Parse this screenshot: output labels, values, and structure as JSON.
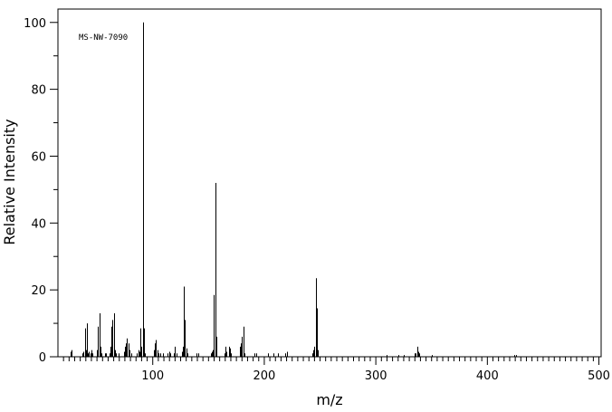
{
  "chart_data": {
    "type": "bar",
    "sample_id": "MS-NW-7090",
    "xlabel": "m/z",
    "ylabel": "Relative Intensity",
    "xlim": [
      15,
      502
    ],
    "ylim": [
      0,
      104
    ],
    "x_ticks": [
      100,
      200,
      300,
      400,
      500
    ],
    "y_ticks": [
      0,
      20,
      40,
      60,
      80,
      100
    ],
    "x_minor_step": 5,
    "y_minor_step": 10,
    "grid": false,
    "peaks": [
      {
        "x": 26,
        "y": 1.5
      },
      {
        "x": 27,
        "y": 2
      },
      {
        "x": 37,
        "y": 1
      },
      {
        "x": 38,
        "y": 1.5
      },
      {
        "x": 39,
        "y": 8.5
      },
      {
        "x": 40,
        "y": 2
      },
      {
        "x": 41,
        "y": 10
      },
      {
        "x": 42,
        "y": 1
      },
      {
        "x": 43,
        "y": 1.5
      },
      {
        "x": 44,
        "y": 1
      },
      {
        "x": 45,
        "y": 2
      },
      {
        "x": 46,
        "y": 1
      },
      {
        "x": 50,
        "y": 2
      },
      {
        "x": 51,
        "y": 9
      },
      {
        "x": 52,
        "y": 13
      },
      {
        "x": 53,
        "y": 3
      },
      {
        "x": 54,
        "y": 1
      },
      {
        "x": 57,
        "y": 1
      },
      {
        "x": 58,
        "y": 1
      },
      {
        "x": 61,
        "y": 1
      },
      {
        "x": 62,
        "y": 3
      },
      {
        "x": 63,
        "y": 9
      },
      {
        "x": 64,
        "y": 11
      },
      {
        "x": 65,
        "y": 13
      },
      {
        "x": 66,
        "y": 2
      },
      {
        "x": 67,
        "y": 1
      },
      {
        "x": 69,
        "y": 1
      },
      {
        "x": 74,
        "y": 1.5
      },
      {
        "x": 75,
        "y": 3
      },
      {
        "x": 76,
        "y": 4
      },
      {
        "x": 77,
        "y": 5.5
      },
      {
        "x": 78,
        "y": 4
      },
      {
        "x": 79,
        "y": 2
      },
      {
        "x": 81,
        "y": 1
      },
      {
        "x": 86,
        "y": 1
      },
      {
        "x": 87,
        "y": 2
      },
      {
        "x": 88,
        "y": 1.5
      },
      {
        "x": 89,
        "y": 8.5
      },
      {
        "x": 90,
        "y": 3
      },
      {
        "x": 91,
        "y": 100
      },
      {
        "x": 92,
        "y": 8.5
      },
      {
        "x": 93,
        "y": 1
      },
      {
        "x": 101,
        "y": 2
      },
      {
        "x": 102,
        "y": 4
      },
      {
        "x": 103,
        "y": 5
      },
      {
        "x": 104,
        "y": 2
      },
      {
        "x": 105,
        "y": 1
      },
      {
        "x": 107,
        "y": 1
      },
      {
        "x": 109,
        "y": 1
      },
      {
        "x": 113,
        "y": 1
      },
      {
        "x": 115,
        "y": 1.5
      },
      {
        "x": 116,
        "y": 1
      },
      {
        "x": 119,
        "y": 1
      },
      {
        "x": 120,
        "y": 3
      },
      {
        "x": 121,
        "y": 1
      },
      {
        "x": 126,
        "y": 1.5
      },
      {
        "x": 127,
        "y": 3
      },
      {
        "x": 128,
        "y": 21
      },
      {
        "x": 129,
        "y": 11
      },
      {
        "x": 130,
        "y": 2.5
      },
      {
        "x": 131,
        "y": 1
      },
      {
        "x": 139,
        "y": 1
      },
      {
        "x": 141,
        "y": 1
      },
      {
        "x": 152,
        "y": 1
      },
      {
        "x": 153,
        "y": 1.5
      },
      {
        "x": 154,
        "y": 2
      },
      {
        "x": 155,
        "y": 18.5
      },
      {
        "x": 156,
        "y": 52
      },
      {
        "x": 157,
        "y": 6
      },
      {
        "x": 164,
        "y": 1
      },
      {
        "x": 165,
        "y": 3
      },
      {
        "x": 166,
        "y": 1.5
      },
      {
        "x": 168,
        "y": 3
      },
      {
        "x": 169,
        "y": 2.5
      },
      {
        "x": 170,
        "y": 1
      },
      {
        "x": 178,
        "y": 3
      },
      {
        "x": 179,
        "y": 4
      },
      {
        "x": 180,
        "y": 6
      },
      {
        "x": 181,
        "y": 9
      },
      {
        "x": 182,
        "y": 1
      },
      {
        "x": 191,
        "y": 1
      },
      {
        "x": 193,
        "y": 1
      },
      {
        "x": 203,
        "y": 1
      },
      {
        "x": 208,
        "y": 1
      },
      {
        "x": 212,
        "y": 1
      },
      {
        "x": 219,
        "y": 1
      },
      {
        "x": 220,
        "y": 1.5
      },
      {
        "x": 243,
        "y": 1
      },
      {
        "x": 244,
        "y": 2
      },
      {
        "x": 245,
        "y": 3
      },
      {
        "x": 246,
        "y": 23.5
      },
      {
        "x": 247,
        "y": 14.5
      },
      {
        "x": 248,
        "y": 2
      },
      {
        "x": 310,
        "y": 0.5
      },
      {
        "x": 320,
        "y": 0.5
      },
      {
        "x": 325,
        "y": 0.5
      },
      {
        "x": 335,
        "y": 1
      },
      {
        "x": 336,
        "y": 1
      },
      {
        "x": 337,
        "y": 3
      },
      {
        "x": 338,
        "y": 1.5
      },
      {
        "x": 339,
        "y": 1
      },
      {
        "x": 350,
        "y": 0.5
      },
      {
        "x": 424,
        "y": 0.5
      },
      {
        "x": 426,
        "y": 0.5
      }
    ]
  }
}
